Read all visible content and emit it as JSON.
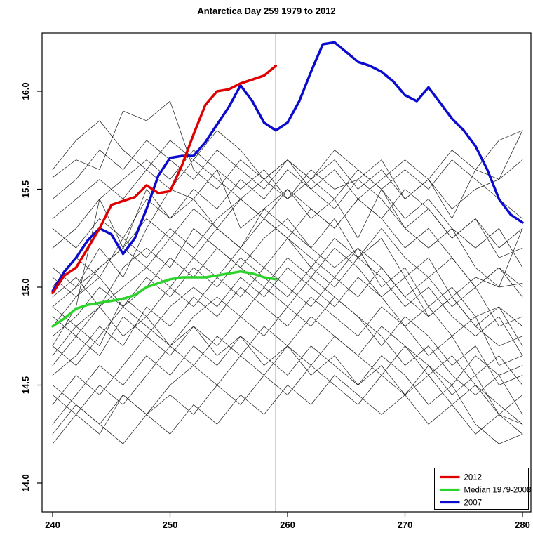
{
  "chart_data": {
    "type": "line",
    "title": "Antarctica Day 259 1979 to 2012",
    "xlabel": "",
    "ylabel": "",
    "xlim": [
      239.1,
      280.7
    ],
    "ylim": [
      13.85,
      16.3
    ],
    "xticks": [
      240,
      250,
      260,
      270,
      280
    ],
    "yticks": [
      14.0,
      14.5,
      15.0,
      15.5,
      16.0
    ],
    "grid": "off",
    "vline_x": 259,
    "colors": {
      "axis": "#000000",
      "background_line": "#1a1a1a",
      "vline": "#4d4d4d",
      "red_2012": "#de0000",
      "green_median": "#2bd42b",
      "blue_2007": "#0b0bcf"
    },
    "series": [
      {
        "name": "2012",
        "color": "#de0000",
        "width": 3.5,
        "draw_order": 3,
        "x_start": 240,
        "x_step": 1,
        "values": [
          14.97,
          15.06,
          15.1,
          15.2,
          15.3,
          15.42,
          15.44,
          15.46,
          15.52,
          15.48,
          15.49,
          15.62,
          15.78,
          15.93,
          16.0,
          16.01,
          16.04,
          16.06,
          16.08,
          16.13
        ]
      },
      {
        "name": "Median 1979-2008",
        "color": "#2bd42b",
        "width": 3.5,
        "draw_order": 1,
        "x_start": 240,
        "x_step": 1,
        "values": [
          14.8,
          14.84,
          14.89,
          14.91,
          14.92,
          14.93,
          14.94,
          14.96,
          15.0,
          15.02,
          15.04,
          15.05,
          15.05,
          15.05,
          15.06,
          15.07,
          15.08,
          15.07,
          15.05,
          15.04
        ]
      },
      {
        "name": "2007",
        "color": "#0b0bcf",
        "width": 3.5,
        "draw_order": 2,
        "x_start": 240,
        "x_step": 1,
        "values": [
          14.98,
          15.08,
          15.15,
          15.24,
          15.3,
          15.27,
          15.17,
          15.25,
          15.4,
          15.57,
          15.66,
          15.67,
          15.67,
          15.74,
          15.83,
          15.92,
          16.03,
          15.95,
          15.84,
          15.8,
          15.84,
          15.95,
          16.1,
          16.24,
          16.25,
          16.2,
          16.15,
          16.13,
          16.1,
          16.05,
          15.98,
          15.95,
          16.02,
          15.94,
          15.86,
          15.8,
          15.72,
          15.6,
          15.45,
          15.37,
          15.33
        ]
      }
    ],
    "background_series": {
      "color": "#1a1a1a",
      "width": 0.7,
      "x_start": 240,
      "x_step": 2,
      "lines": [
        [
          15.56,
          15.65,
          15.6,
          15.9,
          15.85,
          15.95,
          15.6,
          15.5,
          15.65,
          15.55,
          15.45,
          15.6,
          15.5,
          15.55,
          15.65,
          15.45,
          15.55,
          15.35,
          15.6,
          15.55,
          15.8
        ],
        [
          14.7,
          14.9,
          15.45,
          15.2,
          15.5,
          15.35,
          15.45,
          15.6,
          15.3,
          15.4,
          15.5,
          15.35,
          15.45,
          15.25,
          15.5,
          15.3,
          15.2,
          15.3,
          15.1,
          15.0,
          15.3
        ],
        [
          15.1,
          15.0,
          15.2,
          15.05,
          15.3,
          15.5,
          15.45,
          15.3,
          15.2,
          15.4,
          15.3,
          15.2,
          15.35,
          15.15,
          15.25,
          15.05,
          15.15,
          14.95,
          15.05,
          15.0,
          15.02
        ],
        [
          14.95,
          15.05,
          14.9,
          15.1,
          15.2,
          15.1,
          15.3,
          15.2,
          15.1,
          15.25,
          15.35,
          15.2,
          15.1,
          15.2,
          15.0,
          15.1,
          14.9,
          15.0,
          14.85,
          14.9,
          14.8
        ],
        [
          14.8,
          14.95,
          15.05,
          14.9,
          15.0,
          15.15,
          15.05,
          15.2,
          15.1,
          15.0,
          15.15,
          15.05,
          15.2,
          15.1,
          14.95,
          15.05,
          14.85,
          14.95,
          14.8,
          14.7,
          14.75
        ],
        [
          14.6,
          14.75,
          14.65,
          14.85,
          14.75,
          14.9,
          15.0,
          14.9,
          15.05,
          14.95,
          15.1,
          15.0,
          14.9,
          15.05,
          14.95,
          14.8,
          14.9,
          14.75,
          14.85,
          14.6,
          14.65
        ],
        [
          14.55,
          14.65,
          14.8,
          14.7,
          14.9,
          14.8,
          14.95,
          14.85,
          15.0,
          14.9,
          14.8,
          14.95,
          14.85,
          14.75,
          14.9,
          14.8,
          14.65,
          14.75,
          14.55,
          14.65,
          14.5
        ],
        [
          14.7,
          14.6,
          14.75,
          14.9,
          14.8,
          14.7,
          14.85,
          14.95,
          14.85,
          15.0,
          14.9,
          15.05,
          14.95,
          14.85,
          14.7,
          14.85,
          14.75,
          14.6,
          14.7,
          14.5,
          14.55
        ],
        [
          14.4,
          14.55,
          14.45,
          14.6,
          14.75,
          14.65,
          14.8,
          14.7,
          14.85,
          14.75,
          14.9,
          14.8,
          14.95,
          14.85,
          14.75,
          14.6,
          14.7,
          14.55,
          14.45,
          14.55,
          14.35
        ],
        [
          14.45,
          14.35,
          14.5,
          14.4,
          14.55,
          14.7,
          14.6,
          14.75,
          14.65,
          14.8,
          14.7,
          14.85,
          14.75,
          14.65,
          14.8,
          14.7,
          14.55,
          14.65,
          14.5,
          14.4,
          14.3
        ],
        [
          14.2,
          14.35,
          14.25,
          14.45,
          14.35,
          14.5,
          14.6,
          14.5,
          14.65,
          14.55,
          14.7,
          14.6,
          14.75,
          14.65,
          14.55,
          14.7,
          14.6,
          14.45,
          14.55,
          14.35,
          14.45
        ],
        [
          15.3,
          15.2,
          15.35,
          15.25,
          15.45,
          15.35,
          15.5,
          15.4,
          15.55,
          15.45,
          15.6,
          15.5,
          15.4,
          15.55,
          15.45,
          15.3,
          15.4,
          15.25,
          15.35,
          15.15,
          15.2
        ],
        [
          15.0,
          15.15,
          15.05,
          15.25,
          15.15,
          15.3,
          15.2,
          15.35,
          15.45,
          15.35,
          15.25,
          15.4,
          15.3,
          15.45,
          15.35,
          15.2,
          15.3,
          15.15,
          15.0,
          15.1,
          14.95
        ],
        [
          14.85,
          14.75,
          14.9,
          15.0,
          15.1,
          15.0,
          15.15,
          15.05,
          15.2,
          15.1,
          15.25,
          15.15,
          15.05,
          15.2,
          15.1,
          14.95,
          15.05,
          14.9,
          15.0,
          14.8,
          14.85
        ],
        [
          15.45,
          15.55,
          15.7,
          15.6,
          15.75,
          15.65,
          15.55,
          15.7,
          15.6,
          15.5,
          15.65,
          15.55,
          15.45,
          15.6,
          15.5,
          15.35,
          15.45,
          15.3,
          15.2,
          15.3,
          15.1
        ],
        [
          14.3,
          14.45,
          14.6,
          14.5,
          14.65,
          14.55,
          14.7,
          14.6,
          14.75,
          14.65,
          14.55,
          14.7,
          14.6,
          14.5,
          14.65,
          14.55,
          14.4,
          14.5,
          14.3,
          14.2,
          14.25
        ],
        [
          14.65,
          14.8,
          14.7,
          14.95,
          14.85,
          15.0,
          14.9,
          15.05,
          14.95,
          15.1,
          15.0,
          14.9,
          15.05,
          14.95,
          15.1,
          14.95,
          14.85,
          14.95,
          14.8,
          14.9,
          14.7
        ],
        [
          14.9,
          15.0,
          15.1,
          15.2,
          15.1,
          15.25,
          15.15,
          15.3,
          15.2,
          15.35,
          15.25,
          15.1,
          15.25,
          15.15,
          15.3,
          15.15,
          15.05,
          15.15,
          15.0,
          15.1,
          15.0
        ],
        [
          15.2,
          15.3,
          15.45,
          15.55,
          15.65,
          15.55,
          15.7,
          15.6,
          15.5,
          15.6,
          15.45,
          15.55,
          15.65,
          15.5,
          15.6,
          15.45,
          15.55,
          15.4,
          15.5,
          15.55,
          15.65
        ],
        [
          14.5,
          14.4,
          14.3,
          14.45,
          14.35,
          14.25,
          14.4,
          14.3,
          14.45,
          14.35,
          14.5,
          14.4,
          14.55,
          14.45,
          14.35,
          14.45,
          14.3,
          14.4,
          14.25,
          14.35,
          14.25
        ],
        [
          15.6,
          15.75,
          15.85,
          15.7,
          15.6,
          15.75,
          15.65,
          15.8,
          15.7,
          15.55,
          15.65,
          15.5,
          15.6,
          15.45,
          15.55,
          15.65,
          15.55,
          15.7,
          15.6,
          15.75,
          15.8
        ],
        [
          14.75,
          14.85,
          15.0,
          14.9,
          15.05,
          14.95,
          15.1,
          15.0,
          15.15,
          15.05,
          14.95,
          15.1,
          15.0,
          15.15,
          15.05,
          14.9,
          15.0,
          14.85,
          14.75,
          14.85,
          14.65
        ],
        [
          15.05,
          14.95,
          15.1,
          15.2,
          15.35,
          15.25,
          15.4,
          15.3,
          15.45,
          15.35,
          15.5,
          15.4,
          15.3,
          15.45,
          15.35,
          15.5,
          15.4,
          15.25,
          15.35,
          15.2,
          15.3
        ],
        [
          14.25,
          14.4,
          14.3,
          14.2,
          14.35,
          14.45,
          14.35,
          14.5,
          14.4,
          14.55,
          14.45,
          14.6,
          14.5,
          14.4,
          14.55,
          14.45,
          14.6,
          14.5,
          14.65,
          14.55,
          14.6
        ],
        [
          15.35,
          15.45,
          15.55,
          15.45,
          15.6,
          15.5,
          15.65,
          15.55,
          15.45,
          15.55,
          15.65,
          15.55,
          15.7,
          15.6,
          15.5,
          15.6,
          15.5,
          15.65,
          15.55,
          15.45,
          15.35
        ],
        [
          14.9,
          14.8,
          14.9,
          14.75,
          14.85,
          14.7,
          14.8,
          14.65,
          14.75,
          14.6,
          14.7,
          14.55,
          14.65,
          14.5,
          14.6,
          14.45,
          14.55,
          14.4,
          14.5,
          14.35,
          14.3
        ]
      ]
    },
    "legend": {
      "position": "bottom-right",
      "entries": [
        {
          "label": "2012",
          "color": "#de0000"
        },
        {
          "label": "Median 1979-2008",
          "color": "#2bd42b"
        },
        {
          "label": "2007",
          "color": "#0b0bcf"
        }
      ]
    }
  }
}
